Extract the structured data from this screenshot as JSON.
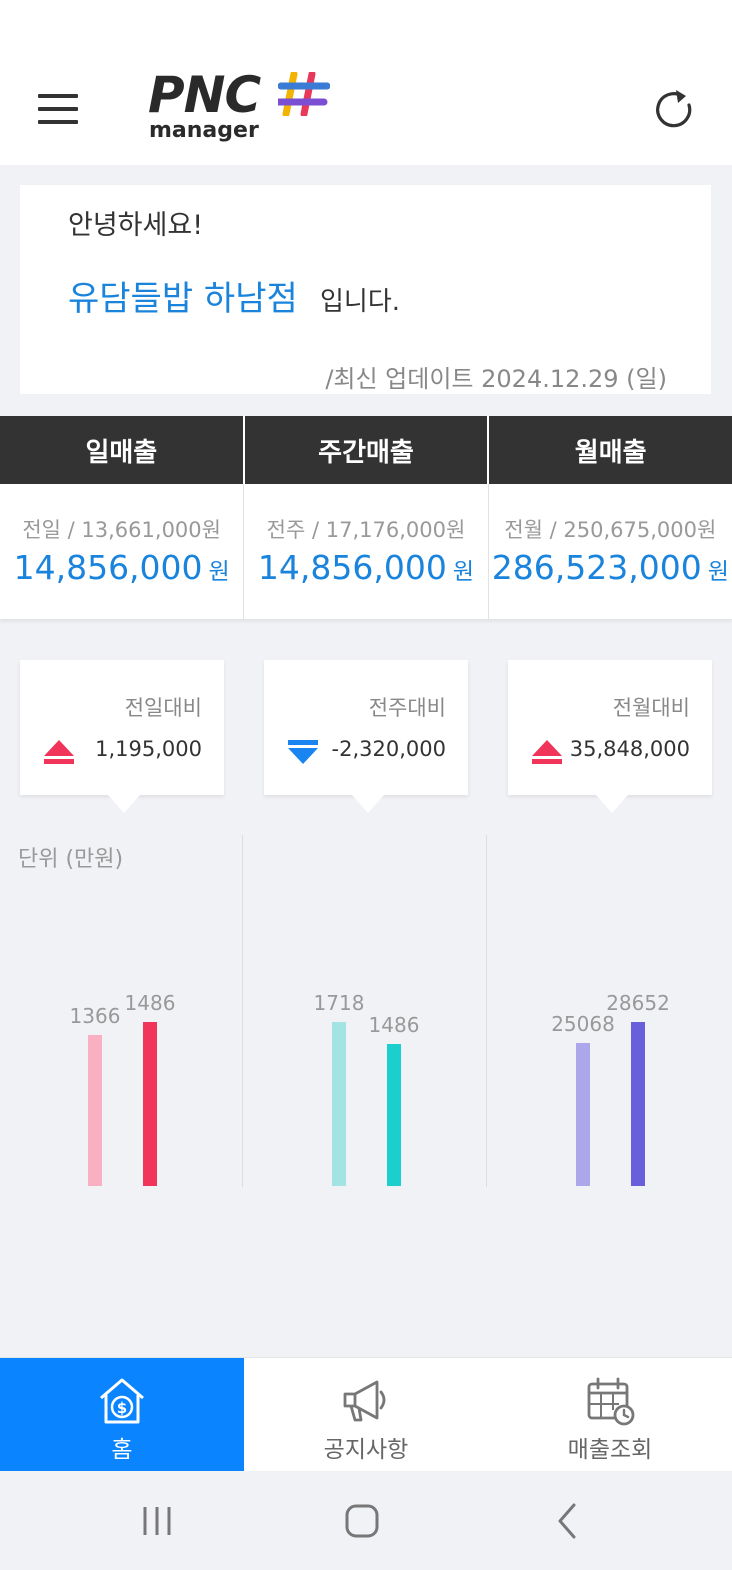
{
  "header": {
    "logo_text": "PNC",
    "logo_subtext": "manager",
    "icons": {
      "menu": "hamburger-icon",
      "refresh": "refresh-icon"
    },
    "logo_hash_colors": [
      "#f2b400",
      "#e8395a",
      "#3a7bd5",
      "#7a4fd1"
    ]
  },
  "greeting": {
    "hello": "안녕하세요!",
    "store_name": "유담들밥 하남점",
    "suffix": "입니다.",
    "updated": "/최신 업데이트 2024.12.29 (일)"
  },
  "sales_tabs": [
    {
      "label": "일매출",
      "prev": "전일 / 13,661,000원",
      "value": "14,856,000",
      "unit": "원"
    },
    {
      "label": "주간매출",
      "prev": "전주 / 17,176,000원",
      "value": "14,856,000",
      "unit": "원"
    },
    {
      "label": "월매출",
      "prev": "전월 / 250,675,000원",
      "value": "286,523,000",
      "unit": "원"
    }
  ],
  "comparisons": [
    {
      "label": "전일대비",
      "value": "1,195,000",
      "direction": "up",
      "icon": "triangle-up-icon",
      "color": "#f0345a"
    },
    {
      "label": "전주대비",
      "value": "-2,320,000",
      "direction": "down",
      "icon": "triangle-down-icon",
      "color": "#1a84f0"
    },
    {
      "label": "전월대비",
      "value": "35,848,000",
      "direction": "up",
      "icon": "triangle-up-icon",
      "color": "#f0345a"
    }
  ],
  "chart_data": {
    "type": "bar",
    "unit_label": "단위 (만원)",
    "groups": [
      {
        "values": [
          1366,
          1486
        ],
        "colors": [
          "#f8b0c2",
          "#f0345a"
        ]
      },
      {
        "values": [
          1718,
          1486
        ],
        "colors": [
          "#a2e4e4",
          "#1ccfcf"
        ]
      },
      {
        "values": [
          25068,
          28652
        ],
        "colors": [
          "#aca6ea",
          "#6a5fdb"
        ]
      }
    ]
  },
  "bottom_nav": [
    {
      "label": "홈",
      "icon": "home-dollar-icon",
      "active": true
    },
    {
      "label": "공지사항",
      "icon": "megaphone-icon",
      "active": false
    },
    {
      "label": "매출조회",
      "icon": "calendar-clock-icon",
      "active": false
    }
  ],
  "system_nav": {
    "icons": [
      "recent-apps-icon",
      "home-icon",
      "back-icon"
    ]
  }
}
